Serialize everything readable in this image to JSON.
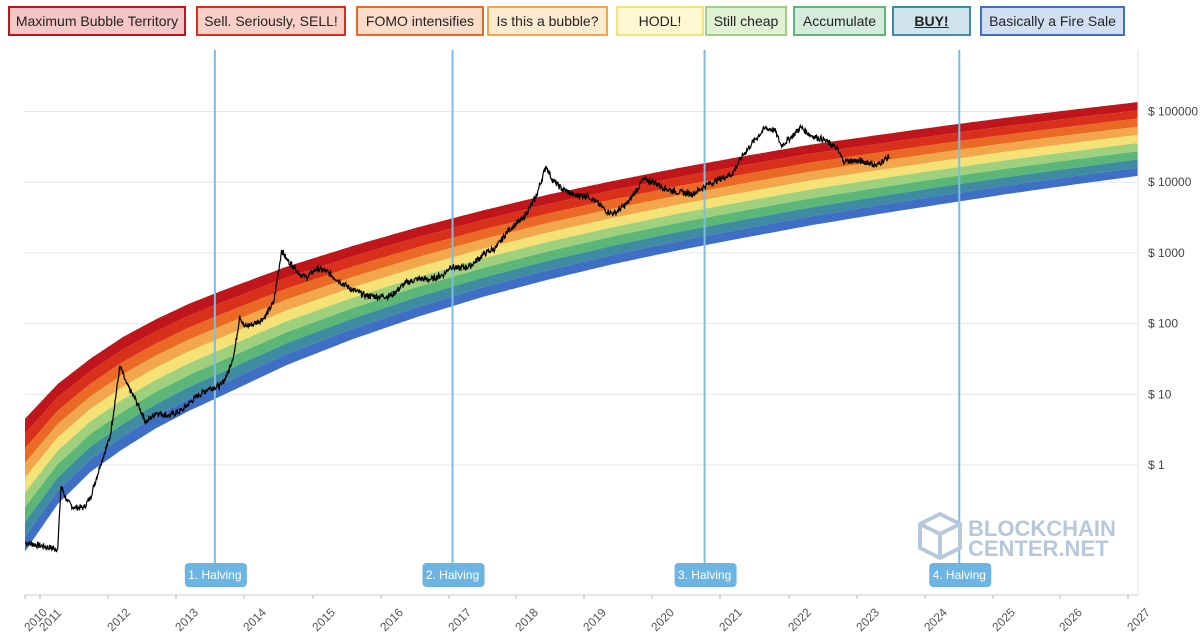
{
  "legend": [
    {
      "label": "Maximum Bubble Territory",
      "fill": "#f4c6c6",
      "border": "#c0151b"
    },
    {
      "label": "Sell. Seriously, SELL!",
      "fill": "#f8d0c8",
      "border": "#d9301c"
    },
    {
      "label": "FOMO intensifies",
      "fill": "#fbdcc8",
      "border": "#ea6a25"
    },
    {
      "label": "Is this a bubble?",
      "fill": "#fdebd0",
      "border": "#f3a74b"
    },
    {
      "label": "HODL!",
      "fill": "#fff8d2",
      "border": "#f5e276"
    },
    {
      "label": "Still cheap",
      "fill": "#e1f1d4",
      "border": "#9fd07e"
    },
    {
      "label": "Accumulate",
      "fill": "#d5ecdc",
      "border": "#5cb677"
    },
    {
      "label": "BUY!",
      "fill": "#cfe3ec",
      "border": "#3f8ca2"
    },
    {
      "label": "Basically a Fire Sale",
      "fill": "#d2dff3",
      "border": "#3f6fc4"
    }
  ],
  "watermark": {
    "line1": "BLOCKCHAIN",
    "line2": "CENTER.NET"
  },
  "chart_data": {
    "type": "area",
    "title": "",
    "xlabel": "",
    "ylabel": "",
    "y_scale": "log",
    "y_ticks": [
      1,
      10,
      100,
      1000,
      10000,
      100000
    ],
    "y_tick_labels": [
      "$ 1",
      "$ 10",
      "$ 100",
      "$ 1000",
      "$ 10000",
      "$ 100000"
    ],
    "x_tick_labels": [
      "2010",
      "2011",
      "2012",
      "2013",
      "2014",
      "2015",
      "2016",
      "2017",
      "2018",
      "2019",
      "2020",
      "2021",
      "2022",
      "2023",
      "2024",
      "2025",
      "2026",
      "2027"
    ],
    "xlim": [
      2010.0,
      2027.0
    ],
    "band_colors": [
      "#c0151b",
      "#d9301c",
      "#ea6a25",
      "#f3a74b",
      "#f5e276",
      "#9fd07e",
      "#5cb677",
      "#3f8ca2",
      "#3f6fc4"
    ],
    "band_names": [
      "Maximum Bubble Territory",
      "Sell. Seriously, SELL!",
      "FOMO intensifies",
      "Is this a bubble?",
      "HODL!",
      "Still cheap",
      "Accumulate",
      "BUY!",
      "Basically a Fire Sale"
    ],
    "rainbow_top_edge": {
      "x": [
        2010.0,
        2010.5,
        2011.0,
        2011.5,
        2012.0,
        2012.5,
        2013.0,
        2014.0,
        2015.0,
        2016.0,
        2017.0,
        2018.0,
        2019.0,
        2020.0,
        2021.0,
        2022.0,
        2023.0,
        2024.0,
        2025.0,
        2026.0,
        2027.0
      ],
      "y": [
        4.5,
        14,
        32,
        65,
        115,
        190,
        290,
        640,
        1250,
        2300,
        4000,
        6700,
        10500,
        16000,
        23500,
        34000,
        46000,
        62000,
        82000,
        106000,
        136000
      ]
    },
    "rainbow_bottom_edge": {
      "x": [
        2010.0,
        2010.5,
        2011.0,
        2011.5,
        2012.0,
        2012.5,
        2013.0,
        2014.0,
        2015.0,
        2016.0,
        2017.0,
        2018.0,
        2019.0,
        2020.0,
        2021.0,
        2022.0,
        2023.0,
        2024.0,
        2025.0,
        2026.0,
        2027.0
      ],
      "y": [
        0.06,
        0.28,
        0.8,
        1.7,
        3.3,
        5.8,
        9.5,
        26,
        60,
        125,
        240,
        420,
        700,
        1100,
        1650,
        2450,
        3500,
        4900,
        6800,
        9200,
        12300
      ]
    },
    "price_series": {
      "name": "",
      "x": [
        2010.0,
        2010.3,
        2010.5,
        2010.55,
        2010.65,
        2010.75,
        2010.9,
        2011.0,
        2011.15,
        2011.3,
        2011.45,
        2011.55,
        2011.7,
        2011.85,
        2012.0,
        2012.2,
        2012.4,
        2012.6,
        2012.8,
        2013.0,
        2013.1,
        2013.2,
        2013.28,
        2013.35,
        2013.5,
        2013.65,
        2013.8,
        2013.92,
        2014.0,
        2014.1,
        2014.2,
        2014.3,
        2014.45,
        2014.6,
        2014.8,
        2015.0,
        2015.2,
        2015.4,
        2015.6,
        2015.8,
        2016.0,
        2016.2,
        2016.4,
        2016.5,
        2016.6,
        2016.8,
        2017.0,
        2017.2,
        2017.4,
        2017.6,
        2017.8,
        2017.96,
        2018.05,
        2018.2,
        2018.4,
        2018.6,
        2018.9,
        2019.0,
        2019.2,
        2019.45,
        2019.6,
        2019.8,
        2020.0,
        2020.2,
        2020.4,
        2020.6,
        2020.8,
        2020.95,
        2021.1,
        2021.3,
        2021.45,
        2021.55,
        2021.7,
        2021.85,
        2022.0,
        2022.2,
        2022.4,
        2022.5,
        2022.7,
        2022.9,
        2023.0,
        2023.1,
        2023.2
      ],
      "y": [
        0.08,
        0.07,
        0.065,
        0.5,
        0.3,
        0.25,
        0.25,
        0.35,
        1.0,
        2.5,
        25,
        14,
        8,
        4,
        5.5,
        5,
        6,
        9,
        12,
        13.5,
        20,
        40,
        130,
        90,
        100,
        120,
        200,
        1100,
        800,
        650,
        500,
        450,
        600,
        550,
        400,
        300,
        250,
        240,
        250,
        370,
        430,
        420,
        500,
        650,
        600,
        650,
        950,
        1200,
        2200,
        3000,
        6000,
        17000,
        11000,
        8000,
        6500,
        6500,
        3800,
        3600,
        5000,
        11000,
        10000,
        8000,
        7200,
        6800,
        9000,
        11000,
        13000,
        23000,
        35000,
        58000,
        55000,
        33000,
        43000,
        60000,
        46000,
        40000,
        30000,
        20000,
        20000,
        19000,
        17000,
        20000,
        23000
      ]
    },
    "halvings": [
      {
        "label": "1. Halving",
        "x": 2012.9
      },
      {
        "label": "2. Halving",
        "x": 2016.53
      },
      {
        "label": "3. Halving",
        "x": 2020.38
      },
      {
        "label": "4. Halving",
        "x": 2024.27
      }
    ],
    "grid": true,
    "legend_position": "top"
  }
}
